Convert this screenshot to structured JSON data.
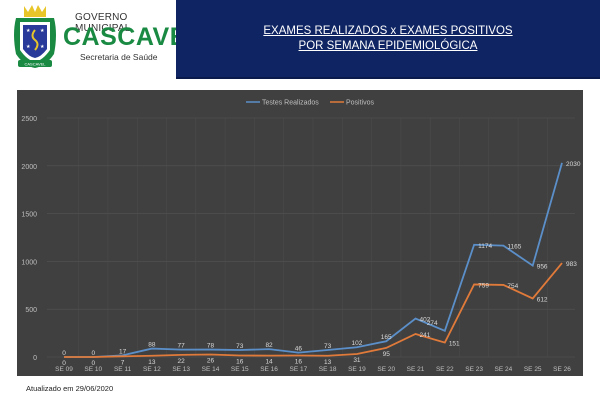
{
  "header": {
    "logo": {
      "gov_line": "GOVERNO MUNICIPAL",
      "city": "CASCAVEL",
      "department": "Secretaria de Saúde",
      "crest_ribbon": "CASCAVEL"
    },
    "title_line1": "EXAMES REALIZADOS x EXAMES POSITIVOS",
    "title_line2": "POR SEMANA EPIDEMIOLÓGICA",
    "band_color": "#0f2462"
  },
  "footer": {
    "updated": "Atualizado em 29/06/2020"
  },
  "chart_data": {
    "type": "line",
    "title": "EXAMES REALIZADOS x EXAMES POSITIVOS POR SEMANA EPIDEMIOLÓGICA",
    "xlabel": "",
    "ylabel": "",
    "categories": [
      "SE 09",
      "SE 10",
      "SE 11",
      "SE 12",
      "SE 13",
      "SE 14",
      "SE 15",
      "SE 16",
      "SE 17",
      "SE 18",
      "SE 19",
      "SE 20",
      "SE 21",
      "SE 22",
      "SE 23",
      "SE 24",
      "SE 25",
      "SE 26"
    ],
    "series": [
      {
        "name": "Testes Realizados",
        "color": "#5b8fc9",
        "values": [
          0,
          0,
          17,
          88,
          77,
          78,
          73,
          82,
          46,
          73,
          102,
          165,
          402,
          274,
          1174,
          1165,
          956,
          2030
        ]
      },
      {
        "name": "Positivos",
        "color": "#e07a3a",
        "values": [
          0,
          0,
          7,
          13,
          22,
          26,
          16,
          14,
          16,
          13,
          31,
          95,
          241,
          151,
          759,
          754,
          612,
          983
        ]
      }
    ],
    "yticks": [
      0,
      500,
      1000,
      1500,
      2000,
      2500
    ],
    "ylim": [
      0,
      2500
    ],
    "grid": true,
    "legend_position": "top",
    "background": "#404040"
  }
}
